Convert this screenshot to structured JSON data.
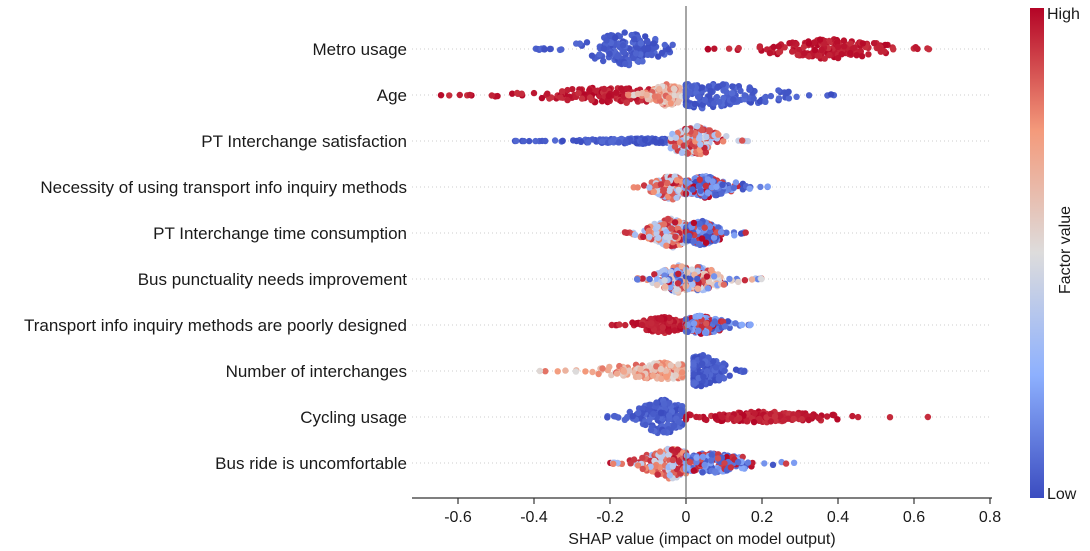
{
  "chart_data": {
    "type": "scatter",
    "subtype": "shap-beeswarm",
    "xlabel": "SHAP value (impact on model output)",
    "xlim": [
      -0.72,
      0.82
    ],
    "xticks": [
      -0.6,
      -0.4,
      -0.2,
      0,
      0.2,
      0.4,
      0.6,
      0.8
    ],
    "xtick_labels": [
      "-0.6",
      "-0.4",
      "-0.2",
      "0",
      "0.2",
      "0.4",
      "0.6",
      "0.8"
    ],
    "colorbar": {
      "label": "Factor value",
      "high_label": "High",
      "low_label": "Low",
      "high_color": "#b40426",
      "mid_color": "#dddcdc",
      "low_color": "#3b4cc0"
    },
    "features": [
      {
        "name": "Metro usage",
        "groups": [
          {
            "color": "low",
            "center": -0.16,
            "min": -0.4,
            "max": 0.0,
            "width": 0.9
          },
          {
            "color": "high",
            "center": 0.38,
            "min": 0.05,
            "max": 0.67,
            "width": 0.55
          }
        ]
      },
      {
        "name": "Age",
        "groups": [
          {
            "color": "high",
            "center": -0.18,
            "min": -0.65,
            "max": -0.02,
            "width": 0.45
          },
          {
            "color": "mid-high",
            "center": -0.05,
            "min": -0.16,
            "max": 0.0,
            "width": 0.6
          },
          {
            "color": "low",
            "center": 0.06,
            "min": 0.0,
            "max": 0.41,
            "width": 0.75
          }
        ]
      },
      {
        "name": "PT Interchange satisfaction",
        "groups": [
          {
            "color": "low",
            "center": -0.12,
            "min": -0.46,
            "max": -0.01,
            "width": 0.15
          },
          {
            "color": "mixed-high",
            "center": 0.02,
            "min": -0.04,
            "max": 0.17,
            "width": 0.85
          }
        ]
      },
      {
        "name": "Necessity of using  transport info inquiry methods",
        "groups": [
          {
            "color": "mixed-high",
            "center": -0.04,
            "min": -0.14,
            "max": 0.0,
            "width": 0.7
          },
          {
            "color": "mixed-low",
            "center": 0.05,
            "min": 0.0,
            "max": 0.22,
            "width": 0.6
          }
        ]
      },
      {
        "name": "PT Interchange time consumption",
        "groups": [
          {
            "color": "mixed-high",
            "center": -0.04,
            "min": -0.17,
            "max": 0.0,
            "width": 0.8
          },
          {
            "color": "mixed-low",
            "center": 0.04,
            "min": 0.0,
            "max": 0.17,
            "width": 0.65
          }
        ]
      },
      {
        "name": "Bus punctuality needs improvement",
        "groups": [
          {
            "color": "mixed",
            "center": -0.02,
            "min": -0.14,
            "max": 0.0,
            "width": 0.75
          },
          {
            "color": "mixed",
            "center": 0.03,
            "min": 0.0,
            "max": 0.2,
            "width": 0.65
          }
        ]
      },
      {
        "name": "Transport info inquiry methods are poorly designed",
        "groups": [
          {
            "color": "high",
            "center": -0.06,
            "min": -0.2,
            "max": 0.0,
            "width": 0.45
          },
          {
            "color": "mixed-low",
            "center": 0.04,
            "min": 0.0,
            "max": 0.19,
            "width": 0.5
          }
        ]
      },
      {
        "name": "Number of interchanges",
        "groups": [
          {
            "color": "mid-high",
            "center": -0.06,
            "min": -0.39,
            "max": -0.01,
            "width": 0.45
          },
          {
            "color": "low",
            "center": 0.04,
            "min": 0.02,
            "max": 0.17,
            "width": 0.9
          }
        ]
      },
      {
        "name": "Cycling usage",
        "groups": [
          {
            "color": "low",
            "center": -0.06,
            "min": -0.21,
            "max": -0.01,
            "width": 0.95
          },
          {
            "color": "high",
            "center": 0.2,
            "min": 0.0,
            "max": 0.64,
            "width": 0.3
          }
        ]
      },
      {
        "name": "Bus ride is uncomfortable",
        "groups": [
          {
            "color": "mixed-high",
            "center": -0.04,
            "min": -0.2,
            "max": 0.0,
            "width": 0.85
          },
          {
            "color": "mixed-low",
            "center": 0.06,
            "min": 0.0,
            "max": 0.32,
            "width": 0.55
          }
        ]
      }
    ]
  }
}
